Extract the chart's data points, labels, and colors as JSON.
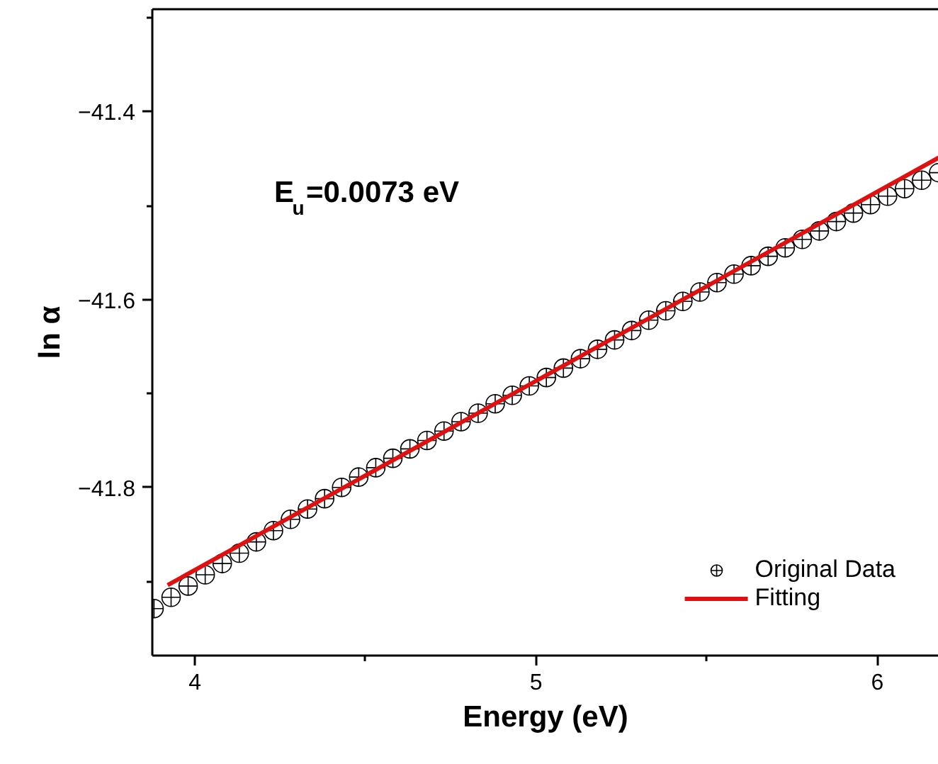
{
  "chart_data": {
    "type": "scatter",
    "xlabel": "Energy (eV)",
    "ylabel": "ln α",
    "annotations": [
      "E$_{u}$=0.0073 eV"
    ],
    "xlim": [
      3.875,
      6.18
    ],
    "ylim": [
      -41.979,
      -41.291
    ],
    "xticks": [
      4,
      {
        "value": 4.5,
        "label": null
      },
      5,
      {
        "value": 5.5,
        "label": null
      },
      6
    ],
    "yticks": [
      {
        "value": -41.3,
        "label": null
      },
      {
        "value": -41.4,
        "label": "−41.4"
      },
      {
        "value": -41.5,
        "label": null
      },
      {
        "value": -41.6,
        "label": "−41.6"
      },
      {
        "value": -41.7,
        "label": null
      },
      {
        "value": -41.8,
        "label": "−41.8"
      },
      {
        "value": -41.9,
        "label": null
      }
    ],
    "grid": false,
    "legend": "bottom right",
    "marker": "circle",
    "series": [
      {
        "name": "Original Data",
        "color": "#000000",
        "x": [
          3.88,
          3.93,
          3.98,
          4.03,
          4.08,
          4.13,
          4.18,
          4.23,
          4.28,
          4.33,
          4.38,
          4.43,
          4.48,
          4.53,
          4.58,
          4.63,
          4.68,
          4.73,
          4.78,
          4.83,
          4.88,
          4.93,
          4.98,
          5.03,
          5.08,
          5.13,
          5.18,
          5.23,
          5.28,
          5.33,
          5.38,
          5.43,
          5.48,
          5.53,
          5.58,
          5.63,
          5.68,
          5.73,
          5.78,
          5.83,
          5.88,
          5.93,
          5.98,
          6.03,
          6.08,
          6.13,
          6.18
        ],
        "values": [
          -41.929,
          -41.917,
          -41.905,
          -41.893,
          -41.881,
          -41.87,
          -41.858,
          -41.846,
          -41.834,
          -41.823,
          -41.812,
          -41.8,
          -41.789,
          -41.779,
          -41.769,
          -41.759,
          -41.75,
          -41.74,
          -41.73,
          -41.721,
          -41.711,
          -41.702,
          -41.692,
          -41.683,
          -41.673,
          -41.663,
          -41.653,
          -41.643,
          -41.633,
          -41.622,
          -41.612,
          -41.602,
          -41.592,
          -41.582,
          -41.573,
          -41.564,
          -41.554,
          -41.545,
          -41.536,
          -41.527,
          -41.517,
          -41.508,
          -41.499,
          -41.49,
          -41.482,
          -41.473,
          -41.465
        ]
      },
      {
        "name": "Fitting",
        "type": "line",
        "color": "#e01010",
        "marker": "none",
        "line_style": "solid",
        "x": [
          3.92,
          6.18
        ],
        "values": [
          -41.904,
          -41.449
        ]
      }
    ]
  }
}
